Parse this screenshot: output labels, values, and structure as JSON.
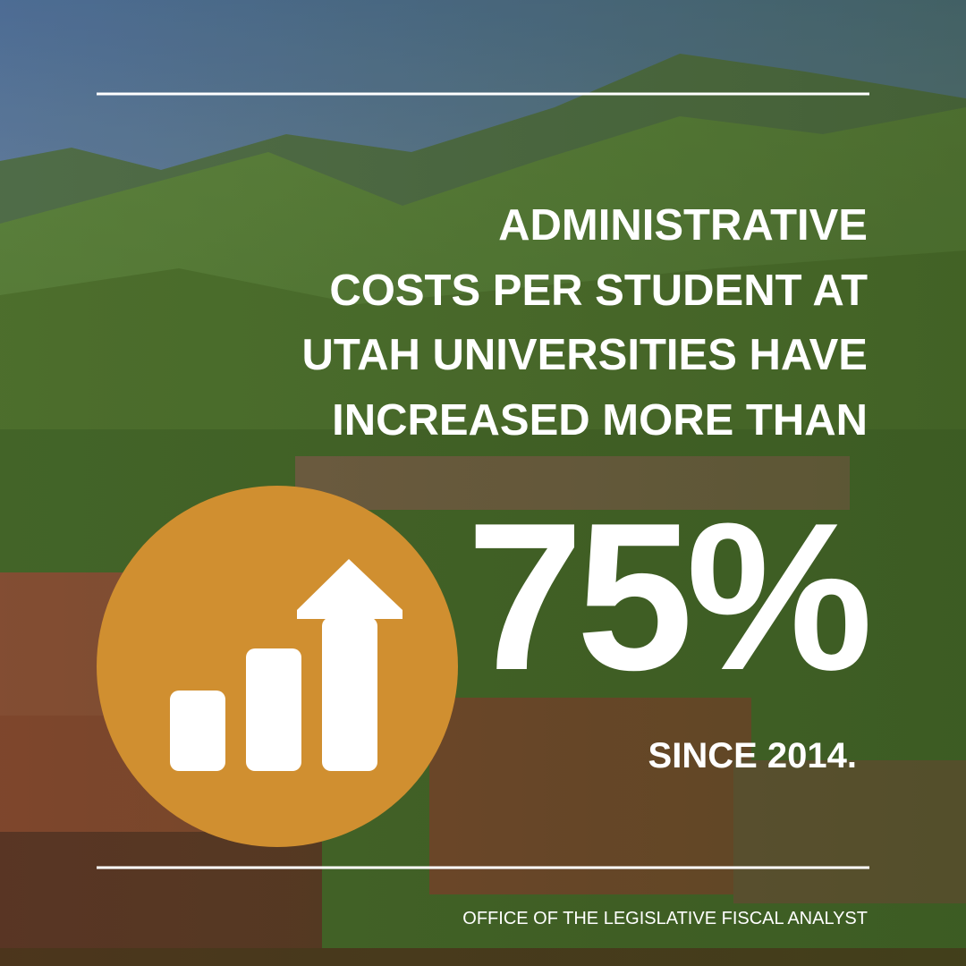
{
  "headline": {
    "lines": [
      "ADMINISTRATIVE",
      "COSTS PER STUDENT AT",
      "UTAH UNIVERSITIES HAVE",
      "INCREASED MORE THAN"
    ]
  },
  "stat": "75%",
  "since": "SINCE 2014.",
  "footer": "OFFICE OF THE LEGISLATIVE FISCAL ANALYST"
}
